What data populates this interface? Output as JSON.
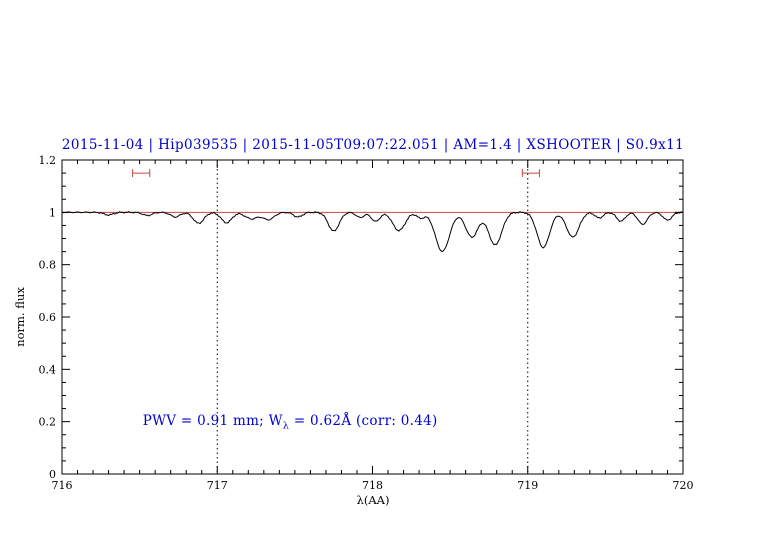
{
  "page": {
    "background": "#ffffff"
  },
  "chart_data": {
    "type": "line",
    "title": "2015-11-04 | Hip039535 | 2015-11-05T09:07:22.051 | AM=1.4 | XSHOOTER | S0.9x11",
    "title_color": "#0000cc",
    "xlabel": "λ(AA)",
    "ylabel": "norm. flux",
    "xlim": [
      716,
      720
    ],
    "ylim": [
      0,
      1.2
    ],
    "xticks": [
      716,
      717,
      718,
      719,
      720
    ],
    "xtick_labels": [
      "716",
      "717",
      "718",
      "719",
      "720"
    ],
    "yticks": [
      0,
      0.2,
      0.4,
      0.6,
      0.8,
      1,
      1.2
    ],
    "ytick_labels": [
      "0",
      "0.2",
      "0.4",
      "0.6",
      "0.8",
      "1",
      "1.2"
    ],
    "x_minor_step": 0.1,
    "y_minor_step": 0.05,
    "grid": false,
    "legend": null,
    "vlines": {
      "x_positions": [
        717,
        719
      ],
      "style": "dotted",
      "color": "#000000"
    },
    "continuum_line": {
      "y": 1.0,
      "color": "#cc4444"
    },
    "band_markers": {
      "y": 1.15,
      "halfwidth": 0.055,
      "color": "#cc4444",
      "x_positions": [
        716.51,
        719.02
      ]
    },
    "annotation": {
      "prefix": "PWV = 0.91 mm; W",
      "sub": "λ",
      "suffix": " = 0.62Å (corr: 0.44)",
      "x": 716.52,
      "y": 0.2,
      "color": "#0000cc"
    },
    "series": [
      {
        "name": "spectrum",
        "color": "#000000",
        "continuum": 1.0,
        "noise_amplitude": 0.003,
        "sample_step": 0.01,
        "absorption_lines": [
          {
            "center": 716.3,
            "depth": 0.01,
            "width": 0.03
          },
          {
            "center": 716.55,
            "depth": 0.012,
            "width": 0.03
          },
          {
            "center": 716.73,
            "depth": 0.018,
            "width": 0.03
          },
          {
            "center": 716.88,
            "depth": 0.042,
            "width": 0.034
          },
          {
            "center": 717.06,
            "depth": 0.04,
            "width": 0.034
          },
          {
            "center": 717.22,
            "depth": 0.025,
            "width": 0.04
          },
          {
            "center": 717.33,
            "depth": 0.028,
            "width": 0.036
          },
          {
            "center": 717.52,
            "depth": 0.018,
            "width": 0.028
          },
          {
            "center": 717.75,
            "depth": 0.072,
            "width": 0.035
          },
          {
            "center": 717.92,
            "depth": 0.02,
            "width": 0.025
          },
          {
            "center": 718.02,
            "depth": 0.035,
            "width": 0.028
          },
          {
            "center": 718.17,
            "depth": 0.07,
            "width": 0.04
          },
          {
            "center": 718.31,
            "depth": 0.022,
            "width": 0.025
          },
          {
            "center": 718.45,
            "depth": 0.15,
            "width": 0.045
          },
          {
            "center": 718.64,
            "depth": 0.095,
            "width": 0.04
          },
          {
            "center": 718.79,
            "depth": 0.125,
            "width": 0.042
          },
          {
            "center": 719.1,
            "depth": 0.135,
            "width": 0.04
          },
          {
            "center": 719.29,
            "depth": 0.095,
            "width": 0.04
          },
          {
            "center": 719.46,
            "depth": 0.022,
            "width": 0.025
          },
          {
            "center": 719.6,
            "depth": 0.034,
            "width": 0.028
          },
          {
            "center": 719.74,
            "depth": 0.046,
            "width": 0.03
          },
          {
            "center": 719.9,
            "depth": 0.03,
            "width": 0.028
          }
        ]
      }
    ]
  }
}
